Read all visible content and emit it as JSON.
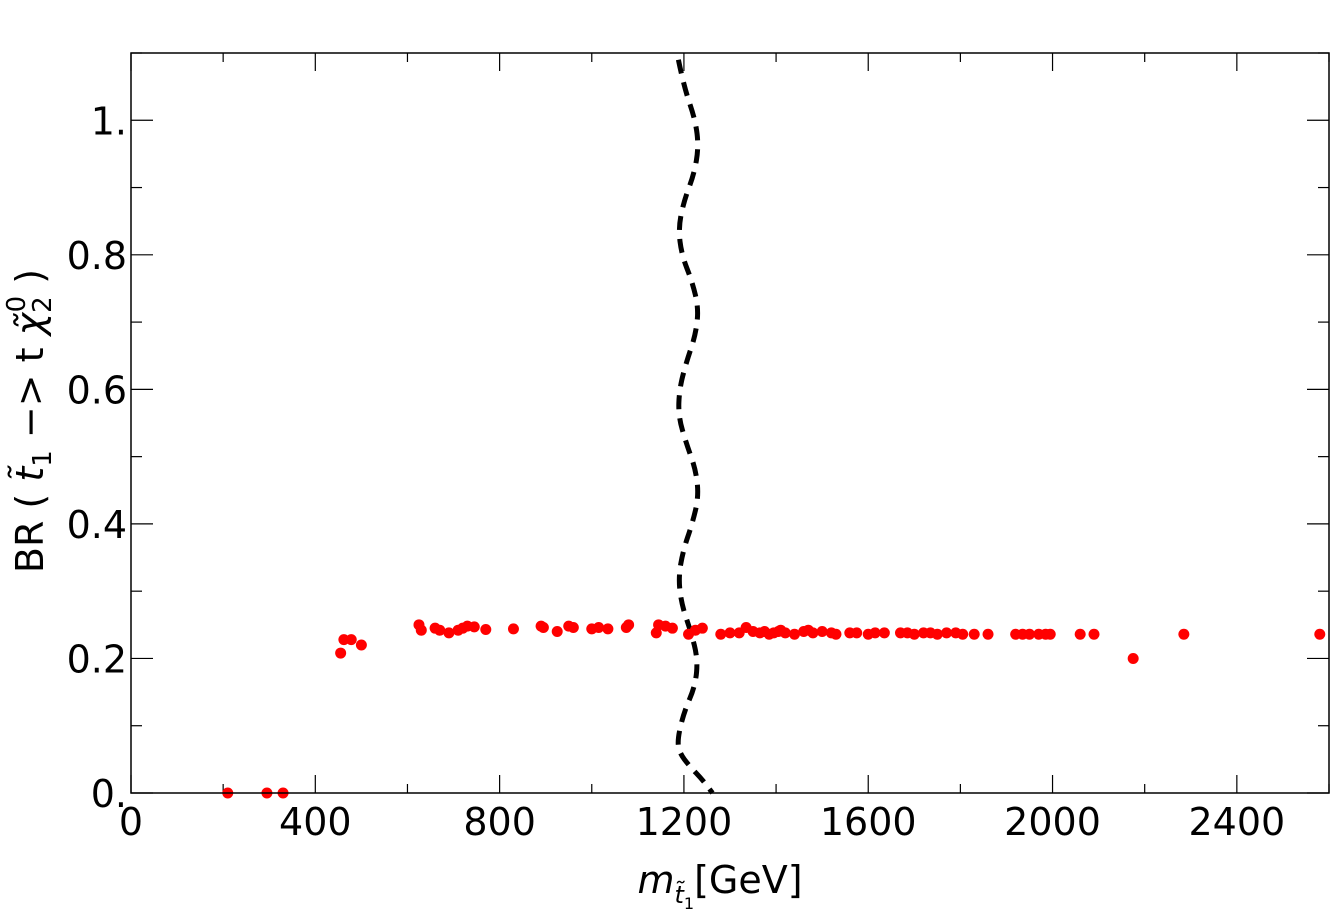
{
  "chart_data": {
    "type": "scatter",
    "xlabel": {
      "base": "m",
      "sub": "t̃",
      "subsub": "1",
      "unit": "[GeV]"
    },
    "ylabel": {
      "prefix": "BR ( ",
      "stop": "t̃",
      "stop_sub": "1",
      "arrow": " −> t ",
      "chi": "χ̃",
      "chi_sub": "2",
      "chi_sup": "0",
      "suffix": " )"
    },
    "xlim": [
      0,
      2600
    ],
    "ylim": [
      0,
      1.1
    ],
    "x_ticks": [
      0,
      400,
      800,
      1200,
      1600,
      2000,
      2400
    ],
    "x_tick_labels": [
      "0",
      "400",
      "800",
      "1200",
      "1600",
      "2000",
      "2400"
    ],
    "y_ticks": [
      0,
      0.2,
      0.4,
      0.6,
      0.8,
      1.0
    ],
    "y_tick_labels": [
      "0.",
      "0.2",
      "0.4",
      "0.6",
      "0.8",
      "1."
    ],
    "grid": false,
    "colors": {
      "points": "#ff0000",
      "boundary": "#000000"
    },
    "series": [
      {
        "kind": "points",
        "x": [
          210,
          295,
          330,
          455,
          462,
          478,
          500,
          625,
          630,
          660,
          670,
          690,
          710,
          720,
          730,
          745,
          770,
          830,
          890,
          895,
          925,
          950,
          960,
          1000,
          1015,
          1035,
          1075,
          1080,
          1140,
          1145,
          1160,
          1175,
          1210,
          1225,
          1240,
          1280,
          1300,
          1320,
          1335,
          1350,
          1365,
          1375,
          1385,
          1395,
          1405,
          1410,
          1420,
          1440,
          1460,
          1470,
          1480,
          1500,
          1520,
          1530,
          1560,
          1575,
          1600,
          1615,
          1635,
          1670,
          1685,
          1700,
          1720,
          1735,
          1750,
          1770,
          1790,
          1805,
          1830,
          1860,
          1920,
          1935,
          1950,
          1970,
          1985,
          1995,
          2060,
          2090,
          2175,
          2285,
          2580
        ],
        "y": [
          0.0,
          0.0,
          0.0,
          0.208,
          0.228,
          0.228,
          0.22,
          0.25,
          0.242,
          0.245,
          0.242,
          0.238,
          0.242,
          0.245,
          0.248,
          0.247,
          0.243,
          0.244,
          0.248,
          0.246,
          0.24,
          0.248,
          0.246,
          0.244,
          0.246,
          0.244,
          0.246,
          0.25,
          0.238,
          0.25,
          0.248,
          0.245,
          0.236,
          0.242,
          0.245,
          0.236,
          0.238,
          0.238,
          0.246,
          0.24,
          0.238,
          0.24,
          0.236,
          0.238,
          0.24,
          0.242,
          0.238,
          0.236,
          0.24,
          0.242,
          0.238,
          0.24,
          0.238,
          0.236,
          0.238,
          0.238,
          0.236,
          0.238,
          0.238,
          0.238,
          0.238,
          0.236,
          0.238,
          0.238,
          0.236,
          0.238,
          0.238,
          0.236,
          0.236,
          0.236,
          0.236,
          0.236,
          0.236,
          0.236,
          0.236,
          0.236,
          0.236,
          0.236,
          0.2,
          0.236,
          0.236
        ]
      },
      {
        "kind": "dashed-line",
        "x": [
          1188,
          1200,
          1225,
          1232,
          1222,
          1200,
          1188,
          1195,
          1218,
          1232,
          1225,
          1205,
          1190,
          1188,
          1205,
          1226,
          1232,
          1218,
          1198,
          1188,
          1195,
          1215,
          1230,
          1225,
          1200,
          1186,
          1190,
          1212,
          1240,
          1262
        ],
        "y": [
          1.09,
          1.05,
          1.0,
          0.96,
          0.92,
          0.88,
          0.84,
          0.8,
          0.76,
          0.72,
          0.68,
          0.64,
          0.6,
          0.56,
          0.52,
          0.48,
          0.44,
          0.4,
          0.36,
          0.32,
          0.28,
          0.24,
          0.2,
          0.16,
          0.12,
          0.08,
          0.06,
          0.04,
          0.02,
          0.0
        ]
      }
    ]
  }
}
